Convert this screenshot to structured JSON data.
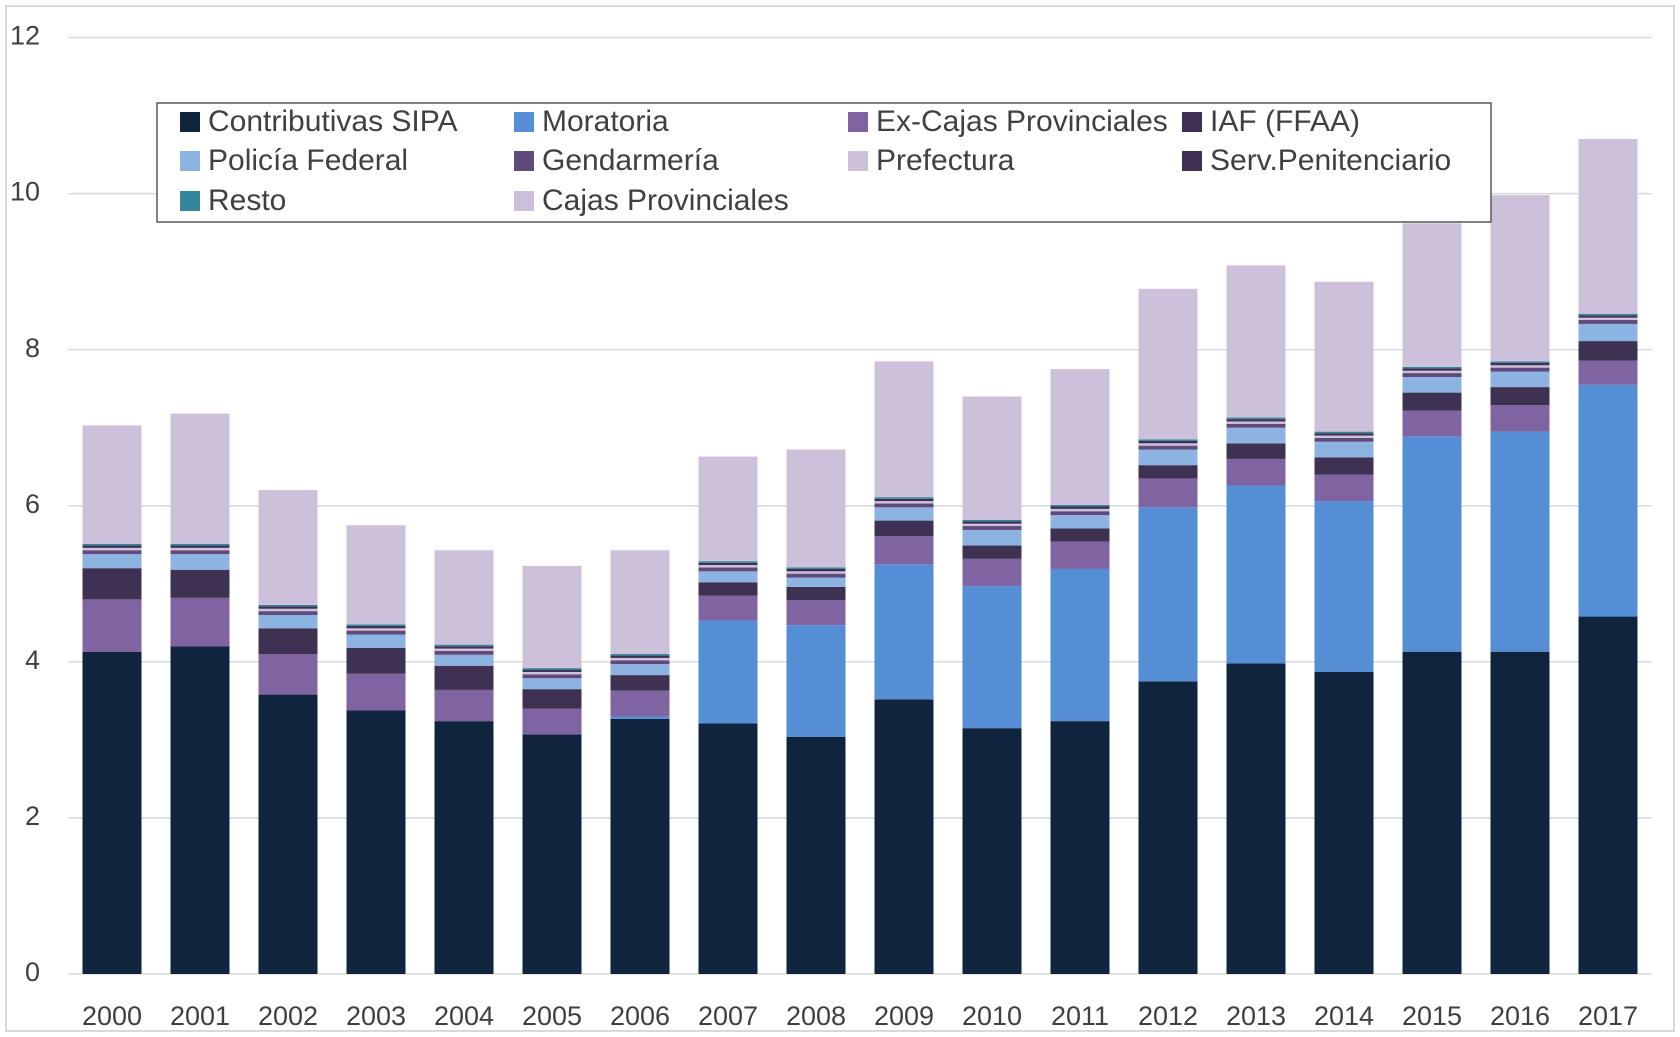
{
  "chart_data": {
    "type": "stacked_bar",
    "categories": [
      "2000",
      "2001",
      "2002",
      "2003",
      "2004",
      "2005",
      "2006",
      "2007",
      "2008",
      "2009",
      "2010",
      "2011",
      "2012",
      "2013",
      "2014",
      "2015",
      "2016",
      "2017"
    ],
    "series": [
      {
        "name": "Contributivas SIPA",
        "color": "#10243e",
        "values": [
          4.13,
          4.2,
          3.58,
          3.38,
          3.24,
          3.07,
          3.27,
          3.21,
          3.04,
          3.52,
          3.15,
          3.24,
          3.75,
          3.98,
          3.87,
          4.13,
          4.13,
          4.58
        ]
      },
      {
        "name": "Moratoria",
        "color": "#558ed5",
        "values": [
          0,
          0,
          0,
          0,
          0,
          0,
          0.03,
          1.32,
          1.43,
          1.73,
          1.82,
          1.95,
          2.23,
          2.28,
          2.19,
          2.76,
          2.82,
          2.97
        ]
      },
      {
        "name": "Ex-Cajas Provinciales",
        "color": "#8064a2",
        "values": [
          0.67,
          0.62,
          0.52,
          0.47,
          0.4,
          0.33,
          0.33,
          0.32,
          0.32,
          0.36,
          0.35,
          0.35,
          0.37,
          0.34,
          0.34,
          0.33,
          0.34,
          0.31
        ]
      },
      {
        "name": "IAF (FFAA)",
        "color": "#3f3151",
        "values": [
          0.4,
          0.36,
          0.33,
          0.33,
          0.31,
          0.25,
          0.2,
          0.17,
          0.17,
          0.2,
          0.17,
          0.17,
          0.17,
          0.2,
          0.22,
          0.23,
          0.23,
          0.25
        ]
      },
      {
        "name": "Policía Federal",
        "color": "#8db3e2",
        "values": [
          0.18,
          0.2,
          0.17,
          0.17,
          0.14,
          0.14,
          0.14,
          0.14,
          0.12,
          0.17,
          0.2,
          0.17,
          0.2,
          0.2,
          0.2,
          0.2,
          0.2,
          0.22
        ]
      },
      {
        "name": "Gendarmería",
        "color": "#604a7b",
        "values": [
          0.05,
          0.05,
          0.05,
          0.05,
          0.05,
          0.05,
          0.05,
          0.05,
          0.05,
          0.05,
          0.05,
          0.05,
          0.05,
          0.05,
          0.05,
          0.05,
          0.05,
          0.05
        ]
      },
      {
        "name": "Prefectura",
        "color": "#ccc0da",
        "values": [
          0.03,
          0.03,
          0.03,
          0.03,
          0.03,
          0.03,
          0.03,
          0.03,
          0.03,
          0.03,
          0.03,
          0.03,
          0.03,
          0.03,
          0.03,
          0.03,
          0.03,
          0.03
        ]
      },
      {
        "name": "Serv.Penitenciario",
        "color": "#403152",
        "values": [
          0.03,
          0.03,
          0.03,
          0.03,
          0.03,
          0.03,
          0.03,
          0.03,
          0.03,
          0.03,
          0.03,
          0.03,
          0.03,
          0.03,
          0.03,
          0.03,
          0.03,
          0.03
        ]
      },
      {
        "name": "Resto",
        "color": "#31859c",
        "values": [
          0.02,
          0.02,
          0.02,
          0.02,
          0.02,
          0.02,
          0.02,
          0.02,
          0.02,
          0.02,
          0.02,
          0.02,
          0.02,
          0.02,
          0.02,
          0.02,
          0.02,
          0.02
        ]
      },
      {
        "name": "Cajas Provinciales",
        "color": "#ccc0da",
        "values": [
          1.52,
          1.67,
          1.47,
          1.27,
          1.21,
          1.31,
          1.33,
          1.34,
          1.51,
          1.74,
          1.58,
          1.74,
          1.93,
          1.95,
          1.92,
          1.84,
          2.13,
          2.24
        ]
      }
    ],
    "ylim": [
      0,
      12
    ],
    "yticks": [
      0,
      2,
      4,
      6,
      8,
      10,
      12
    ],
    "grid": true,
    "legend": "top"
  }
}
